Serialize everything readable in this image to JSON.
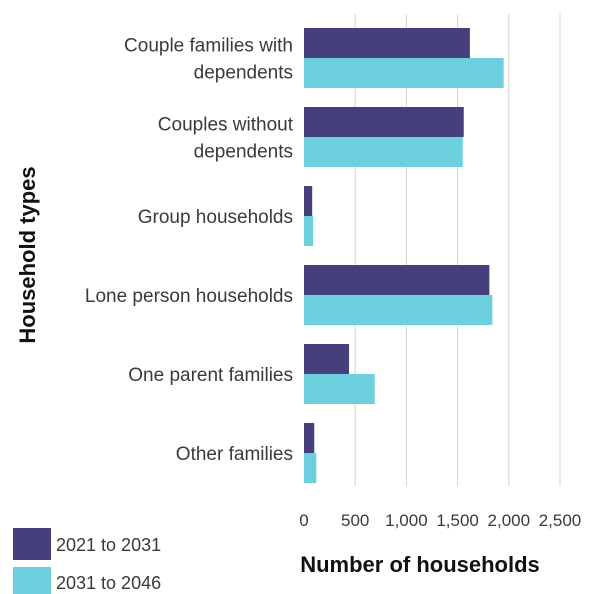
{
  "chart_data": {
    "type": "bar",
    "orientation": "horizontal",
    "categories": [
      [
        "Couple families with",
        "dependents"
      ],
      [
        "Couples without",
        "dependents"
      ],
      [
        "Group households"
      ],
      [
        "Lone person households"
      ],
      [
        "One parent families"
      ],
      [
        "Other families"
      ]
    ],
    "series": [
      {
        "name": "2021 to 2031",
        "color": "#453f7c",
        "values": [
          1620,
          1560,
          80,
          1810,
          440,
          100
        ]
      },
      {
        "name": "2031 to 2046",
        "color": "#6ccfdd",
        "values": [
          1950,
          1550,
          90,
          1840,
          690,
          120
        ]
      }
    ],
    "xlabel": "Number of households",
    "ylabel": "Household types",
    "xlim": [
      0,
      2500
    ],
    "ticks": [
      0,
      500,
      1000,
      1500,
      2000,
      2500
    ],
    "tick_labels": [
      "0",
      "500",
      "1,000",
      "1,500",
      "2,000",
      "2,500"
    ],
    "grid": "vertical",
    "legend": "bottom-left"
  }
}
